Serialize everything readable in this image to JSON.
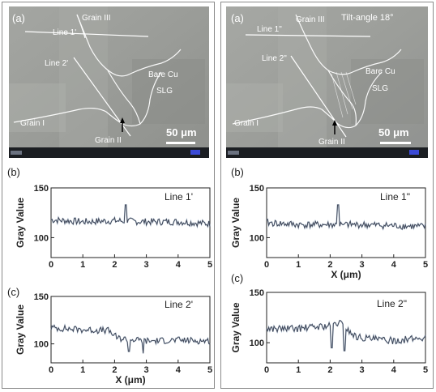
{
  "panels": [
    {
      "id": "left",
      "sem": {
        "panel_label": "(a)",
        "tilt_label": "",
        "labels": {
          "grain3": "Grain III",
          "line1": "Line 1'",
          "line2": "Line 2'",
          "bare_cu": "Bare Cu",
          "slg": "SLG",
          "grain1": "Grain I",
          "grain2": "Grain II"
        },
        "scale_bar": "50 μm"
      },
      "profiles": [
        {
          "panel_label": "(b)",
          "line_label": "Line 1'"
        },
        {
          "panel_label": "(c)",
          "line_label": "Line 2'"
        }
      ]
    },
    {
      "id": "right",
      "sem": {
        "panel_label": "(a)",
        "tilt_label": "Tilt-angle  18°",
        "labels": {
          "grain3": "Grain III",
          "line1": "Line 1\"",
          "line2": "Line 2\"",
          "bare_cu": "Bare Cu",
          "slg": "SLG",
          "grain1": "Grain I",
          "grain2": "Grain II"
        },
        "scale_bar": "50 μm"
      },
      "profiles": [
        {
          "panel_label": "(b)",
          "line_label": "Line 1\""
        },
        {
          "panel_label": "(c)",
          "line_label": "Line 2\""
        }
      ]
    }
  ],
  "chart_data": [
    {
      "type": "line",
      "title": "",
      "xlabel": "",
      "ylabel": "Gray Value",
      "xlim": [
        0,
        5
      ],
      "ylim": [
        80,
        150
      ],
      "x_ticks": [
        0,
        1,
        2,
        3,
        4,
        5
      ],
      "y_ticks": [
        100,
        150
      ],
      "series": [
        {
          "color": "#3c4150",
          "baseline": [
            [
              0,
              118
            ],
            [
              1,
              116
            ],
            [
              2,
              117
            ],
            [
              3,
              116
            ],
            [
              4,
              116
            ],
            [
              5,
              114
            ]
          ],
          "spikes": [
            [
              2.35,
              133
            ]
          ]
        }
      ]
    },
    {
      "type": "line",
      "title": "",
      "xlabel": "X (μm)",
      "ylabel": "Gray Value",
      "xlim": [
        0,
        5
      ],
      "ylim": [
        80,
        150
      ],
      "x_ticks": [
        0,
        1,
        2,
        3,
        4,
        5
      ],
      "y_ticks": [
        100,
        150
      ],
      "series": [
        {
          "color": "#3c4150",
          "baseline": [
            [
              0,
              117
            ],
            [
              1,
              115
            ],
            [
              1.8,
              114
            ],
            [
              2.1,
              106
            ],
            [
              3,
              103
            ],
            [
              4,
              104
            ],
            [
              5,
              103
            ]
          ],
          "spikes": [
            [
              2.45,
              92
            ],
            [
              2.9,
              90
            ]
          ]
        }
      ]
    },
    {
      "type": "line",
      "title": "",
      "xlabel": "X (μm)",
      "ylabel": "Gray Value",
      "xlim": [
        0,
        5
      ],
      "ylim": [
        80,
        150
      ],
      "x_ticks": [
        0,
        1,
        2,
        3,
        4,
        5
      ],
      "y_ticks": [
        100,
        150
      ],
      "series": [
        {
          "color": "#3c4150",
          "baseline": [
            [
              0,
              115
            ],
            [
              1,
              113
            ],
            [
              2,
              113
            ],
            [
              3,
              113
            ],
            [
              4,
              112
            ],
            [
              5,
              111
            ]
          ],
          "spikes": [
            [
              2.25,
              133
            ],
            [
              2.4,
              113
            ]
          ]
        }
      ]
    },
    {
      "type": "line",
      "title": "",
      "xlabel": "",
      "ylabel": "Gray Value",
      "xlim": [
        0,
        5
      ],
      "ylim": [
        80,
        150
      ],
      "x_ticks": [
        0,
        1,
        2,
        3,
        4,
        5
      ],
      "y_ticks": [
        100,
        150
      ],
      "series": [
        {
          "color": "#3c4150",
          "baseline": [
            [
              0,
              114
            ],
            [
              1,
              114
            ],
            [
              2,
              117
            ],
            [
              2.3,
              120
            ],
            [
              2.8,
              106
            ],
            [
              3.5,
              103
            ],
            [
              4,
              102
            ],
            [
              5,
              105
            ]
          ],
          "spikes": [
            [
              2.45,
              92
            ],
            [
              2.05,
              95
            ]
          ]
        }
      ]
    }
  ]
}
